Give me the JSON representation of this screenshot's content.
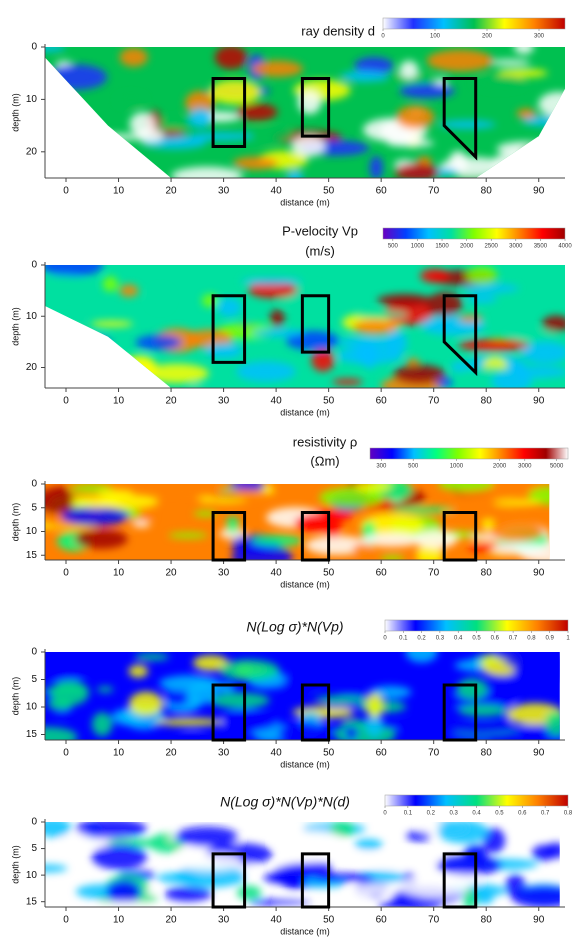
{
  "chart_data": [
    {
      "type": "contour",
      "title": "ray density d",
      "xlabel": "distance (m)",
      "ylabel": "depth (m)",
      "xlim": [
        -4,
        95
      ],
      "xticks": [
        0,
        10,
        20,
        30,
        40,
        50,
        60,
        70,
        80,
        90
      ],
      "ylim": [
        0,
        25
      ],
      "yticks": [
        0,
        10,
        20
      ],
      "y_inverted": true,
      "colorbar": {
        "lim": [
          0,
          350
        ],
        "ticks": [
          0,
          100,
          200,
          300
        ],
        "log_scale": false,
        "colors": [
          "#ffffff",
          "#2030ff",
          "#00c0ff",
          "#00c050",
          "#ffff00",
          "#ff8000",
          "#c00000"
        ]
      },
      "outlines": [
        {
          "x": [
            28,
            34,
            34,
            28
          ],
          "y": [
            6,
            6,
            19,
            19
          ]
        },
        {
          "x": [
            45,
            50,
            50,
            45
          ],
          "y": [
            6,
            6,
            17,
            17
          ]
        },
        {
          "x": [
            72,
            78,
            78,
            72
          ],
          "y": [
            6,
            6,
            21,
            15
          ]
        }
      ]
    },
    {
      "type": "contour",
      "title": "P-velocity Vp",
      "units": "(m/s)",
      "xlabel": "distance (m)",
      "ylabel": "depth (m)",
      "xlim": [
        -4,
        95
      ],
      "xticks": [
        0,
        10,
        20,
        30,
        40,
        50,
        60,
        70,
        80,
        90
      ],
      "ylim": [
        0,
        24
      ],
      "yticks": [
        0,
        10,
        20
      ],
      "y_inverted": true,
      "colorbar": {
        "lim": [
          300,
          4000
        ],
        "ticks": [
          500,
          1000,
          1500,
          2000,
          2500,
          3000,
          3500,
          4000
        ],
        "log_scale": false,
        "colors": [
          "#6a00c0",
          "#0040ff",
          "#00c0ff",
          "#00e0a0",
          "#80ff00",
          "#ffff00",
          "#ff8000",
          "#ff0000",
          "#a00000"
        ]
      },
      "outlines": [
        {
          "x": [
            28,
            34,
            34,
            28
          ],
          "y": [
            6,
            6,
            19,
            19
          ]
        },
        {
          "x": [
            45,
            50,
            50,
            45
          ],
          "y": [
            6,
            6,
            17,
            17
          ]
        },
        {
          "x": [
            72,
            78,
            78,
            72
          ],
          "y": [
            6,
            6,
            21,
            15
          ]
        }
      ]
    },
    {
      "type": "contour",
      "title": "resistivity ρ",
      "units": "(Ωm)",
      "xlabel": "distance (m)",
      "ylabel": "depth (m)",
      "xlim": [
        -4,
        95
      ],
      "xticks": [
        0,
        10,
        20,
        30,
        40,
        50,
        60,
        70,
        80,
        90
      ],
      "ylim": [
        0,
        16
      ],
      "yticks": [
        0,
        5,
        10,
        15
      ],
      "y_inverted": true,
      "colorbar": {
        "lim": [
          250,
          6000
        ],
        "ticks": [
          300,
          500,
          1000,
          2000,
          3000,
          5000
        ],
        "log_scale": true,
        "colors": [
          "#6000c0",
          "#0000ff",
          "#00c0ff",
          "#00ff80",
          "#80ff00",
          "#ffff00",
          "#ff8000",
          "#ff0000",
          "#a00000",
          "#ffffff"
        ]
      },
      "outlines": [
        {
          "x": [
            28,
            34,
            34,
            28
          ],
          "y": [
            6,
            6,
            16,
            16
          ]
        },
        {
          "x": [
            45,
            50,
            50,
            45
          ],
          "y": [
            6,
            6,
            16,
            16
          ]
        },
        {
          "x": [
            72,
            78,
            78,
            72
          ],
          "y": [
            6,
            6,
            16,
            16
          ]
        }
      ]
    },
    {
      "type": "contour",
      "title": "N(Log σ)*N(Vp)",
      "xlabel": "distance (m)",
      "ylabel": "depth (m)",
      "xlim": [
        -4,
        95
      ],
      "xticks": [
        0,
        10,
        20,
        30,
        40,
        50,
        60,
        70,
        80,
        90
      ],
      "ylim": [
        0,
        16
      ],
      "yticks": [
        0,
        5,
        10,
        15
      ],
      "y_inverted": true,
      "colorbar": {
        "lim": [
          0,
          1
        ],
        "ticks": [
          0,
          0.1,
          0.2,
          0.3,
          0.4,
          0.5,
          0.6,
          0.7,
          0.8,
          0.9,
          1
        ],
        "log_scale": false,
        "colors": [
          "#ffffff",
          "#0000ff",
          "#00c0ff",
          "#00e080",
          "#ffff00",
          "#ff8000",
          "#c00000"
        ]
      },
      "outlines": [
        {
          "x": [
            28,
            34,
            34,
            28
          ],
          "y": [
            6,
            6,
            16,
            16
          ]
        },
        {
          "x": [
            45,
            50,
            50,
            45
          ],
          "y": [
            6,
            6,
            16,
            16
          ]
        },
        {
          "x": [
            72,
            78,
            78,
            72
          ],
          "y": [
            6,
            6,
            16,
            16
          ]
        }
      ]
    },
    {
      "type": "contour",
      "title": "N(Log σ)*N(Vp)*N(d)",
      "xlabel": "distance (m)",
      "ylabel": "depth (m)",
      "xlim": [
        -4,
        95
      ],
      "xticks": [
        0,
        10,
        20,
        30,
        40,
        50,
        60,
        70,
        80,
        90
      ],
      "ylim": [
        0,
        16
      ],
      "yticks": [
        0,
        5,
        10,
        15
      ],
      "y_inverted": true,
      "colorbar": {
        "lim": [
          0,
          0.8
        ],
        "ticks": [
          0,
          0.1,
          0.2,
          0.3,
          0.4,
          0.5,
          0.6,
          0.7,
          0.8
        ],
        "log_scale": false,
        "colors": [
          "#ffffff",
          "#0000ff",
          "#00c0ff",
          "#00e080",
          "#ffff00",
          "#ff8000",
          "#c00000"
        ]
      },
      "outlines": [
        {
          "x": [
            28,
            34,
            34,
            28
          ],
          "y": [
            6,
            6,
            16,
            16
          ]
        },
        {
          "x": [
            45,
            50,
            50,
            45
          ],
          "y": [
            6,
            6,
            16,
            16
          ]
        },
        {
          "x": [
            72,
            78,
            78,
            72
          ],
          "y": [
            6,
            6,
            16,
            16
          ]
        }
      ]
    }
  ]
}
